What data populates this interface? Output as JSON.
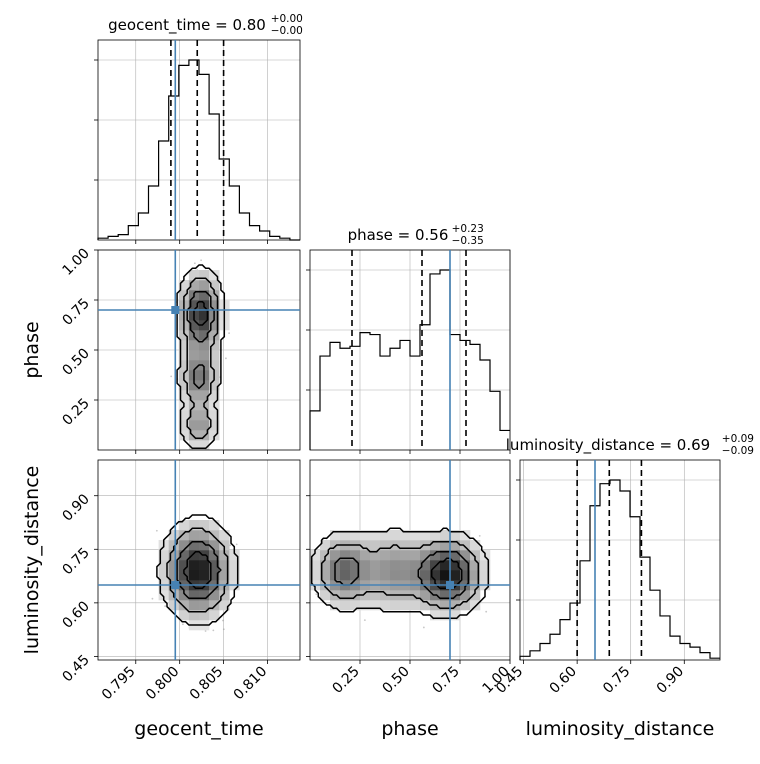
{
  "chart_data": {
    "type": "corner",
    "parameters": [
      "geocent_time",
      "phase",
      "luminosity_distance"
    ],
    "truths": {
      "geocent_time": 0.7995,
      "phase": 0.7,
      "luminosity_distance": 0.65
    },
    "titles": [
      {
        "name": "geocent_time",
        "median": "0.80",
        "plus": "+0.00",
        "minus": "−0.00"
      },
      {
        "name": "phase",
        "median": "0.56",
        "plus": "+0.23",
        "minus": "−0.35"
      },
      {
        "name": "luminosity_distance",
        "median": "0.69",
        "plus": "+0.09",
        "minus": "−0.09"
      }
    ],
    "axis_labels": {
      "x": [
        "geocent_time",
        "phase",
        "luminosity_distance"
      ],
      "y": [
        "phase",
        "luminosity_distance"
      ]
    },
    "ticks": {
      "geocent_time": [
        "0.795",
        "0.800",
        "0.805",
        "0.810"
      ],
      "phase": [
        "0.25",
        "0.50",
        "0.75",
        "1.00"
      ],
      "luminosity_distance": [
        "0.45",
        "0.60",
        "0.75",
        "0.90"
      ]
    },
    "ranges": {
      "geocent_time": [
        0.7907,
        0.8137
      ],
      "phase": [
        0.0,
        1.0
      ],
      "luminosity_distance": [
        0.44,
        1.0
      ]
    },
    "quantiles": {
      "geocent_time": [
        0.799,
        0.802,
        0.805
      ],
      "phase": [
        0.21,
        0.56,
        0.78
      ],
      "luminosity_distance": [
        0.6,
        0.69,
        0.78
      ]
    },
    "histograms": {
      "geocent_time": {
        "edges_start": 0.7907,
        "bin_width": 0.00115,
        "counts": [
          1,
          2,
          3,
          8,
          15,
          30,
          55,
          80,
          97,
          100,
          92,
          70,
          45,
          30,
          15,
          8,
          5,
          2,
          1,
          0
        ]
      },
      "phase": {
        "edges_start": 0.0,
        "bin_width": 0.05,
        "counts": [
          20,
          48,
          55,
          52,
          53,
          60,
          59,
          48,
          52,
          56,
          48,
          64,
          90,
          92,
          59,
          56,
          54,
          46,
          30,
          10
        ]
      },
      "luminosity_distance": {
        "edges_start": 0.44,
        "bin_width": 0.028,
        "counts": [
          2,
          5,
          9,
          14,
          22,
          31,
          54,
          84,
          96,
          98,
          92,
          78,
          56,
          38,
          24,
          13,
          9,
          7,
          4,
          1
        ]
      }
    }
  }
}
